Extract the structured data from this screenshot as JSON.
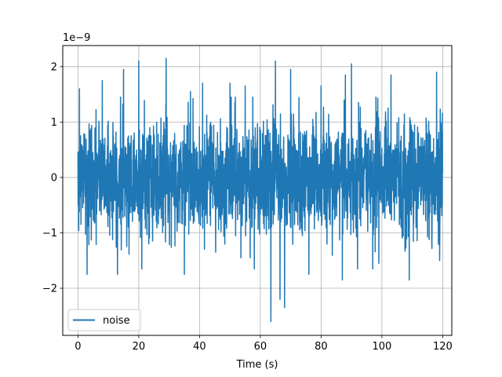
{
  "chart_data": {
    "type": "line",
    "title": "",
    "xlabel": "Time (s)",
    "ylabel": "",
    "y_offset_text": "1e−9",
    "xlim": [
      -5,
      123
    ],
    "ylim": [
      -2.85,
      2.38
    ],
    "x_ticks": [
      0,
      20,
      40,
      60,
      80,
      100,
      120
    ],
    "x_tick_labels": [
      "0",
      "20",
      "40",
      "60",
      "80",
      "100",
      "120"
    ],
    "y_ticks": [
      -2,
      -1,
      0,
      1,
      2
    ],
    "y_tick_labels": [
      "−2",
      "−1",
      "0",
      "1",
      "2"
    ],
    "grid": true,
    "legend_position": "lower-left",
    "series": [
      {
        "name": "noise",
        "color": "#1f77b4",
        "x_start": 0,
        "x_end": 120,
        "values_scale": "1e-9",
        "envelope_typical": [
          -1.0,
          1.0
        ],
        "peak_values": [
          {
            "x": 0.5,
            "y": 1.6
          },
          {
            "x": 3,
            "y": -1.75
          },
          {
            "x": 8,
            "y": 1.75
          },
          {
            "x": 13,
            "y": -1.75
          },
          {
            "x": 15,
            "y": 1.95
          },
          {
            "x": 20,
            "y": 2.1
          },
          {
            "x": 21,
            "y": -1.65
          },
          {
            "x": 29,
            "y": 2.15
          },
          {
            "x": 35,
            "y": -1.75
          },
          {
            "x": 37,
            "y": 1.55
          },
          {
            "x": 41,
            "y": 1.7
          },
          {
            "x": 50,
            "y": 1.7
          },
          {
            "x": 55,
            "y": 1.65
          },
          {
            "x": 58,
            "y": -1.65
          },
          {
            "x": 63.5,
            "y": -2.6
          },
          {
            "x": 65,
            "y": 2.1
          },
          {
            "x": 66.5,
            "y": -2.2
          },
          {
            "x": 68,
            "y": -2.35
          },
          {
            "x": 70,
            "y": 1.95
          },
          {
            "x": 76,
            "y": -1.75
          },
          {
            "x": 80,
            "y": 1.65
          },
          {
            "x": 87,
            "y": -1.85
          },
          {
            "x": 88,
            "y": 1.85
          },
          {
            "x": 90,
            "y": 2.05
          },
          {
            "x": 92,
            "y": -1.65
          },
          {
            "x": 97,
            "y": -1.65
          },
          {
            "x": 99,
            "y": -1.55
          },
          {
            "x": 103,
            "y": 1.85
          },
          {
            "x": 109,
            "y": -1.85
          },
          {
            "x": 118,
            "y": 1.9
          },
          {
            "x": 119,
            "y": -1.5
          }
        ]
      }
    ]
  }
}
